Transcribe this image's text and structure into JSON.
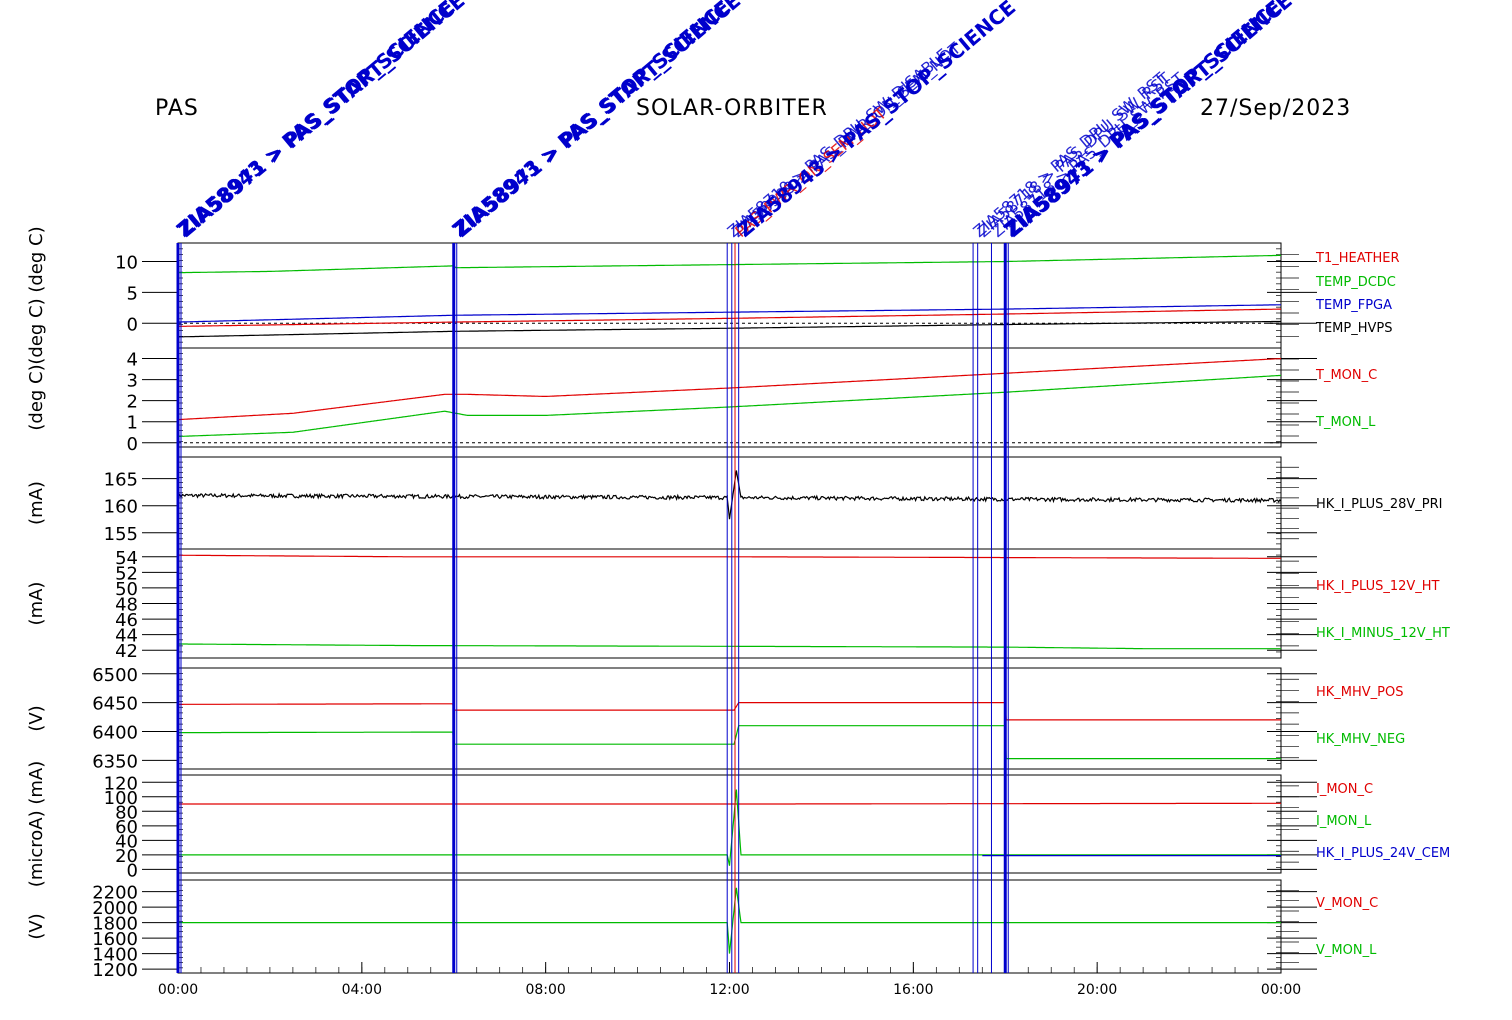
{
  "header": {
    "instrument": "PAS",
    "mission": "SOLAR-ORBITER",
    "date": "27/Sep/2023"
  },
  "x_axis": {
    "ticks": [
      "00:00",
      "04:00",
      "08:00",
      "12:00",
      "16:00",
      "20:00",
      "00:00"
    ],
    "range_hours": [
      0,
      24
    ]
  },
  "colors": {
    "red": "#e00000",
    "green": "#00bb00",
    "blue": "#0000cc",
    "black": "#000000"
  },
  "events": [
    {
      "t": 0.0,
      "color": "#0000cc",
      "weight": "thick",
      "labels": [
        "ZIA58943 > PAS_STOP_SCIENCE",
        "ZIA58971 > PAS_START_SCIENCE"
      ],
      "style": "bold"
    },
    {
      "t": 6.0,
      "color": "#0000cc",
      "weight": "thick",
      "labels": [
        "ZIA58943 > PAS_STOP_SCIENCE",
        "ZIA58971 > PAS_START_SCIENCE"
      ],
      "style": "bold"
    },
    {
      "t": 11.95,
      "color": "#0000cc",
      "weight": "thin",
      "labels": [
        "ZIA58710 > PAS_DPU_SW_DISABLE"
      ],
      "style": "thin"
    },
    {
      "t": 12.05,
      "color": "#0000cc",
      "weight": "thin",
      "labels": [
        "ZIA58999 > PAS_PWR_ON_SEM_NOT"
      ],
      "style": "thin"
    },
    {
      "t": 12.12,
      "color": "#e00000",
      "weight": "thin",
      "labels": [
        "PAS_PWR_ON_SEM_NOT"
      ],
      "style": "thin"
    },
    {
      "t": 12.2,
      "color": "#0000cc",
      "weight": "thin",
      "labels": [
        "ZIA58943 > PAS_STOP_SCIENCE"
      ],
      "style": "bold"
    },
    {
      "t": 17.3,
      "color": "#0000cc",
      "weight": "thin",
      "labels": [
        "ZIA58718 > PAS_DPU_SW_RST"
      ],
      "style": "thin"
    },
    {
      "t": 17.4,
      "color": "#0000cc",
      "weight": "thin",
      "labels": [
        "ZIA58718 > PAS_DPU_SW_RST"
      ],
      "style": "thin"
    },
    {
      "t": 17.7,
      "color": "#0000cc",
      "weight": "thin",
      "labels": [
        "ZIA58718 > PAS_DPU_SW_RST"
      ],
      "style": "thin"
    },
    {
      "t": 18.0,
      "color": "#0000cc",
      "weight": "thick",
      "labels": [
        "ZIA58943 > PAS_STOP_SCIENCE",
        "ZIA58971 > PAS_START_SCIENCE"
      ],
      "style": "bold"
    }
  ],
  "chart_data": [
    {
      "type": "line",
      "ylabel": "(deg C) (deg C)",
      "ylim": [
        -4,
        13
      ],
      "yticks": [
        0,
        5,
        10
      ],
      "zero_line": true,
      "series": [
        {
          "name": "T1_HEATHER",
          "color": "#e00000",
          "points": [
            [
              0,
              -0.5
            ],
            [
              6,
              0.2
            ],
            [
              12,
              0.8
            ],
            [
              18,
              1.5
            ],
            [
              24,
              2.3
            ]
          ]
        },
        {
          "name": "TEMP_DCDC",
          "color": "#00bb00",
          "points": [
            [
              0,
              8.2
            ],
            [
              2,
              8.4
            ],
            [
              6,
              9.3
            ],
            [
              6.05,
              9.0
            ],
            [
              12,
              9.5
            ],
            [
              18,
              10.0
            ],
            [
              24,
              11.0
            ]
          ]
        },
        {
          "name": "TEMP_FPGA",
          "color": "#0000cc",
          "points": [
            [
              0,
              0.2
            ],
            [
              6,
              1.3
            ],
            [
              12,
              1.8
            ],
            [
              18,
              2.3
            ],
            [
              24,
              3.0
            ]
          ]
        },
        {
          "name": "TEMP_HVPS",
          "color": "#000000",
          "points": [
            [
              0,
              -2.2
            ],
            [
              6,
              -1.3
            ],
            [
              12,
              -0.8
            ],
            [
              18,
              -0.2
            ],
            [
              24,
              0.3
            ]
          ]
        }
      ]
    },
    {
      "type": "line",
      "ylabel": "(deg C)",
      "ylim": [
        -0.2,
        4.5
      ],
      "yticks": [
        0,
        1,
        2,
        3,
        4
      ],
      "zero_line": true,
      "series": [
        {
          "name": "T_MON_C",
          "color": "#e00000",
          "points": [
            [
              0,
              1.1
            ],
            [
              2.5,
              1.4
            ],
            [
              5.8,
              2.3
            ],
            [
              6.3,
              2.3
            ],
            [
              8,
              2.2
            ],
            [
              12,
              2.6
            ],
            [
              18,
              3.3
            ],
            [
              24,
              4.0
            ]
          ]
        },
        {
          "name": "T_MON_L",
          "color": "#00bb00",
          "points": [
            [
              0,
              0.3
            ],
            [
              2.5,
              0.5
            ],
            [
              5.8,
              1.5
            ],
            [
              6.3,
              1.3
            ],
            [
              8,
              1.3
            ],
            [
              12,
              1.7
            ],
            [
              18,
              2.4
            ],
            [
              24,
              3.2
            ]
          ]
        }
      ]
    },
    {
      "type": "line",
      "ylabel": "(mA)",
      "ylim": [
        152,
        169
      ],
      "yticks": [
        155,
        160,
        165
      ],
      "zero_line": false,
      "series": [
        {
          "name": "HK_I_PLUS_28V_PRI",
          "color": "#000000",
          "points": [
            [
              0,
              161.9
            ],
            [
              6,
              161.7
            ],
            [
              11.95,
              161.5
            ],
            [
              12.0,
              157.5
            ],
            [
              12.15,
              166.5
            ],
            [
              12.25,
              161.5
            ],
            [
              18,
              161.2
            ],
            [
              24,
              161.0
            ]
          ],
          "noise": 0.35
        }
      ]
    },
    {
      "type": "line",
      "ylabel": "(mA)",
      "ylim": [
        41,
        55
      ],
      "yticks": [
        42,
        44,
        46,
        48,
        50,
        52,
        54
      ],
      "zero_line": false,
      "series": [
        {
          "name": "HK_I_PLUS_12V_HT",
          "color": "#e00000",
          "points": [
            [
              0,
              54.2
            ],
            [
              5,
              54.0
            ],
            [
              12,
              54.0
            ],
            [
              24,
              53.8
            ]
          ]
        },
        {
          "name": "HK_I_MINUS_12V_HT",
          "color": "#00bb00",
          "points": [
            [
              0,
              42.8
            ],
            [
              5,
              42.6
            ],
            [
              12,
              42.5
            ],
            [
              18,
              42.4
            ],
            [
              21,
              42.2
            ],
            [
              24,
              42.2
            ]
          ]
        }
      ]
    },
    {
      "type": "line",
      "ylabel": "(V)",
      "ylim": [
        6335,
        6510
      ],
      "yticks": [
        6350,
        6400,
        6450,
        6500
      ],
      "zero_line": false,
      "series": [
        {
          "name": "HK_MHV_POS",
          "color": "#e00000",
          "points": [
            [
              0,
              6447
            ],
            [
              5.98,
              6448
            ],
            [
              6.0,
              6437
            ],
            [
              12.1,
              6437
            ],
            [
              12.2,
              6450
            ],
            [
              18,
              6450
            ],
            [
              18.02,
              6420
            ],
            [
              24,
              6420
            ]
          ]
        },
        {
          "name": "HK_MHV_NEG",
          "color": "#00bb00",
          "points": [
            [
              0,
              6398
            ],
            [
              5.98,
              6399
            ],
            [
              6.0,
              6378
            ],
            [
              12.1,
              6378
            ],
            [
              12.2,
              6410
            ],
            [
              18,
              6410
            ],
            [
              18.02,
              6353
            ],
            [
              24,
              6353
            ]
          ]
        }
      ]
    },
    {
      "type": "line",
      "ylabel": "(microA) (mA)",
      "ylim": [
        -5,
        130
      ],
      "yticks": [
        0,
        20,
        40,
        60,
        80,
        100,
        120
      ],
      "zero_line": false,
      "series": [
        {
          "name": "I_MON_C",
          "color": "#e00000",
          "points": [
            [
              0,
              90
            ],
            [
              12,
              90
            ],
            [
              24,
              91
            ]
          ]
        },
        {
          "name": "I_MON_L",
          "color": "#00bb00",
          "points": [
            [
              0,
              20
            ],
            [
              11.95,
              20
            ],
            [
              12.0,
              5
            ],
            [
              12.15,
              110
            ],
            [
              12.25,
              20
            ],
            [
              24,
              20
            ]
          ]
        },
        {
          "name": "HK_I_PLUS_24V_CEM",
          "color": "#0000cc",
          "points": [
            [
              17.5,
              19
            ],
            [
              24,
              19
            ]
          ]
        }
      ]
    },
    {
      "type": "line",
      "ylabel": "(V)",
      "ylim": [
        1150,
        2350
      ],
      "yticks": [
        1200,
        1400,
        1600,
        1800,
        2000,
        2200
      ],
      "zero_line": false,
      "series": [
        {
          "name": "V_MON_C",
          "color": "#e00000",
          "points": []
        },
        {
          "name": "V_MON_L",
          "color": "#00bb00",
          "points": [
            [
              0,
              1800
            ],
            [
              11.95,
              1800
            ],
            [
              12.0,
              1400
            ],
            [
              12.15,
              2250
            ],
            [
              12.25,
              1800
            ],
            [
              24,
              1800
            ]
          ]
        }
      ]
    }
  ]
}
